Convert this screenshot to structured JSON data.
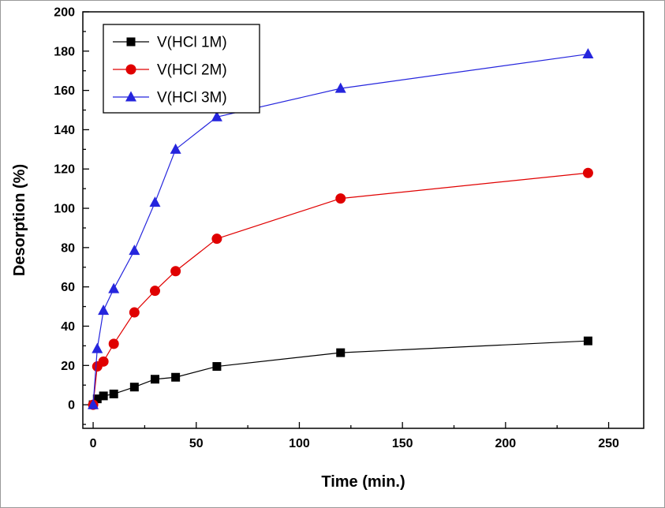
{
  "chart_data": {
    "type": "line",
    "title": "",
    "xlabel": "Time (min.)",
    "ylabel": "Desorption (%)",
    "x": [
      0,
      2,
      5,
      10,
      20,
      30,
      40,
      60,
      120,
      240
    ],
    "series": [
      {
        "name": "V(HCl 1M)",
        "color": "#000000",
        "marker": "square",
        "values": [
          0,
          3,
          4.5,
          5.5,
          9,
          13,
          14,
          19.5,
          26.5,
          32.5
        ]
      },
      {
        "name": "V(HCl 2M)",
        "color": "#e00000",
        "marker": "circle",
        "values": [
          0,
          19.5,
          22,
          31,
          47,
          58,
          68,
          84.5,
          105,
          118
        ]
      },
      {
        "name": "V(HCl 3M)",
        "color": "#2525dd",
        "marker": "triangle-up",
        "values": [
          0,
          28.5,
          48,
          59,
          78.5,
          103,
          130,
          146.5,
          161,
          178.5
        ]
      }
    ],
    "xlim": [
      -5,
      267
    ],
    "ylim": [
      -12,
      200
    ],
    "xticks": [
      0,
      50,
      100,
      150,
      200,
      250
    ],
    "yticks": [
      0,
      20,
      40,
      60,
      80,
      100,
      120,
      140,
      160,
      180,
      200
    ],
    "x_minor_step": 25,
    "y_minor_step": 10,
    "grid": false,
    "legend_position": "top-left",
    "frame_color": "#000000",
    "background_color": "#ffffff"
  }
}
